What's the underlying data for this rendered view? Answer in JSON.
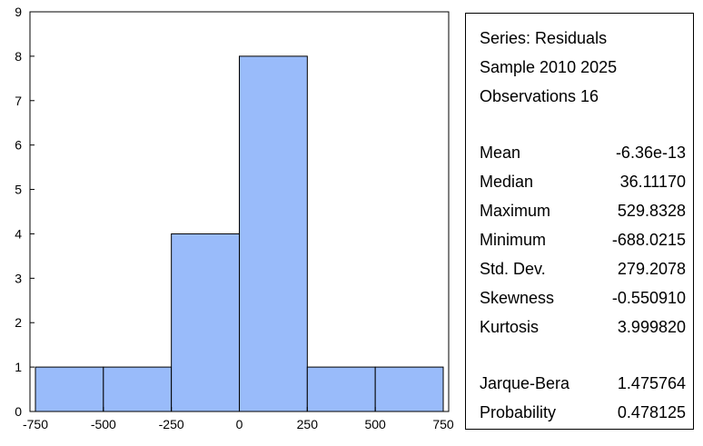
{
  "chart_data": {
    "type": "bar",
    "subtype": "histogram",
    "bins": [
      {
        "from": -750,
        "to": -500,
        "count": 1
      },
      {
        "from": -500,
        "to": -250,
        "count": 1
      },
      {
        "from": -250,
        "to": 0,
        "count": 4
      },
      {
        "from": 0,
        "to": 250,
        "count": 8
      },
      {
        "from": 250,
        "to": 500,
        "count": 1
      },
      {
        "from": 500,
        "to": 750,
        "count": 1
      }
    ],
    "xlim": [
      -750,
      750
    ],
    "ylim": [
      0,
      9
    ],
    "xticks": [
      "-750",
      "-500",
      "-250",
      "0",
      "250",
      "500",
      "750"
    ],
    "yticks": [
      "0",
      "1",
      "2",
      "3",
      "4",
      "5",
      "6",
      "7",
      "8",
      "9"
    ],
    "bar_color": "#99bbfa",
    "grid": false,
    "title": "",
    "xlabel": "",
    "ylabel": ""
  },
  "stats": {
    "header": [
      "Series: Residuals",
      "Sample 2010 2025",
      "Observations 16"
    ],
    "rows": [
      {
        "label": "Mean",
        "value": "-6.36e-13"
      },
      {
        "label": "Median",
        "value": "36.11170"
      },
      {
        "label": "Maximum",
        "value": "529.8328"
      },
      {
        "label": "Minimum",
        "value": "-688.0215"
      },
      {
        "label": "Std. Dev.",
        "value": "279.2078"
      },
      {
        "label": "Skewness",
        "value": "-0.550910"
      },
      {
        "label": "Kurtosis",
        "value": "3.999820"
      }
    ],
    "test_rows": [
      {
        "label": "Jarque-Bera",
        "value": "1.475764"
      },
      {
        "label": "Probability",
        "value": "0.478125"
      }
    ]
  }
}
